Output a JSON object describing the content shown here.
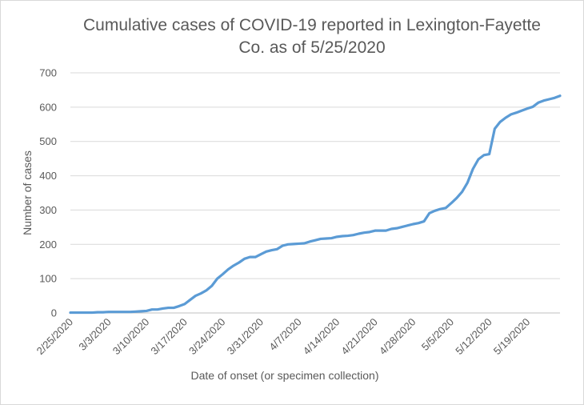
{
  "chart_data": {
    "type": "line",
    "title_line1": "Cumulative cases of COVID-19 reported in Lexington-Fayette",
    "title_line2": "Co.  as of 5/25/2020",
    "xlabel": "Date of onset (or specimen collection)",
    "ylabel": "Number of cases",
    "ylim": [
      0,
      700
    ],
    "yticks": [
      "0",
      "100",
      "200",
      "300",
      "400",
      "500",
      "600",
      "700"
    ],
    "xticks": [
      "2/25/2020",
      "3/3/2020",
      "3/10/2020",
      "3/17/2020",
      "3/24/2020",
      "3/31/2020",
      "4/7/2020",
      "4/14/2020",
      "4/21/2020",
      "4/28/2020",
      "5/5/2020",
      "5/12/2020",
      "5/19/2020"
    ],
    "x_start": "2/25/2020",
    "x_end": "5/25/2020",
    "grid": "horizontal",
    "line_color": "#5b9bd5",
    "series": [
      {
        "values": [
          1,
          1,
          1,
          1,
          1,
          2,
          2,
          3,
          3,
          3,
          3,
          3,
          4,
          5,
          6,
          10,
          10,
          13,
          15,
          15,
          20,
          26,
          38,
          50,
          57,
          66,
          79,
          100,
          113,
          127,
          138,
          147,
          158,
          163,
          163,
          171,
          179,
          183,
          186,
          196,
          200,
          201,
          202,
          203,
          208,
          212,
          216,
          217,
          218,
          222,
          224,
          225,
          227,
          231,
          234,
          236,
          240,
          240,
          240,
          245,
          247,
          251,
          255,
          259,
          262,
          267,
          291,
          298,
          303,
          306,
          320,
          335,
          353,
          380,
          420,
          448,
          460,
          463,
          537,
          557,
          569,
          579,
          584,
          590,
          596,
          601,
          613,
          619,
          623,
          627,
          633
        ]
      }
    ]
  }
}
